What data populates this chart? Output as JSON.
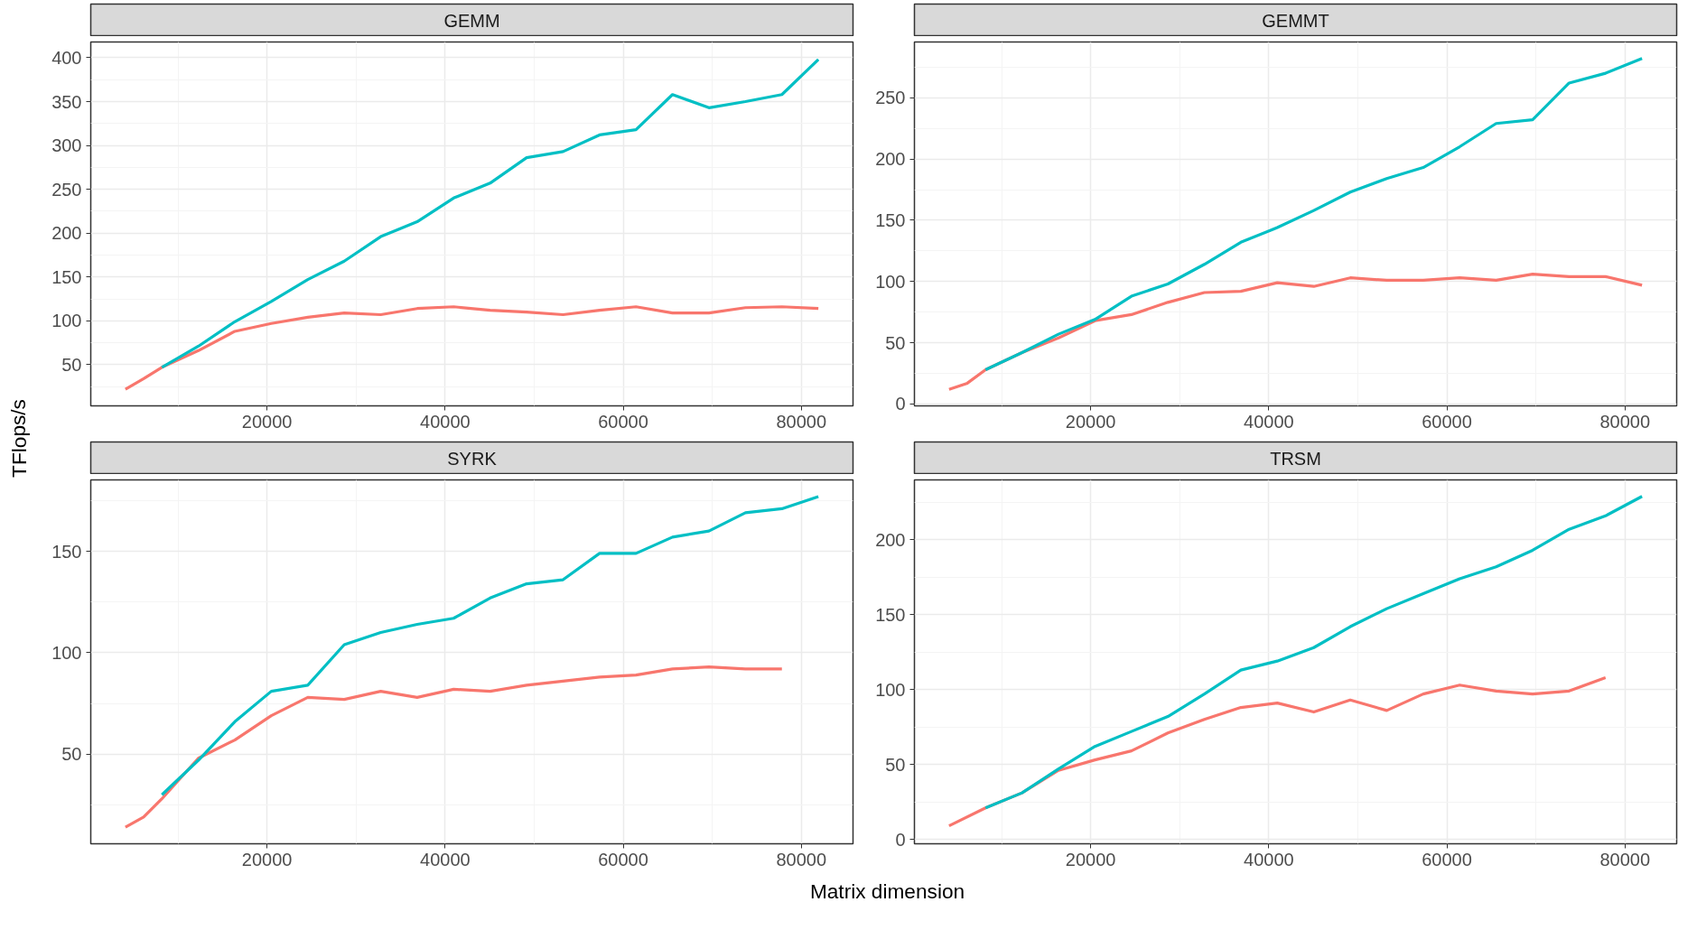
{
  "chart_data": [
    {
      "type": "line",
      "title": "GEMM",
      "ylabel": "TFlops/s",
      "xlim": [
        205,
        85811
      ],
      "ylim": [
        3,
        418
      ],
      "xticks": [
        20000,
        40000,
        60000,
        80000
      ],
      "yticks": [
        50,
        100,
        150,
        200,
        250,
        300,
        350,
        400
      ],
      "grid": true,
      "series": [
        {
          "color": "#f8766d",
          "x": [
            4096,
            6144,
            8192,
            12288,
            16384,
            20480,
            24576,
            28672,
            32768,
            36864,
            40960,
            45056,
            49152,
            53248,
            57344,
            61440,
            65536,
            69632,
            73728,
            77824,
            81920
          ],
          "values": [
            22,
            34,
            47,
            66,
            88,
            97,
            104,
            109,
            107,
            114,
            116,
            112,
            110,
            107,
            112,
            116,
            109,
            109,
            115,
            116,
            114
          ]
        },
        {
          "color": "#00bfc4",
          "x": [
            8192,
            12288,
            16384,
            20480,
            24576,
            28672,
            32768,
            36864,
            40960,
            45056,
            49152,
            53248,
            57344,
            61440,
            65536,
            69632,
            73728,
            77824,
            81920
          ],
          "values": [
            47,
            71,
            99,
            122,
            147,
            168,
            196,
            213,
            240,
            257,
            286,
            293,
            312,
            318,
            358,
            343,
            350,
            358,
            398
          ]
        }
      ]
    },
    {
      "type": "line",
      "title": "GEMMT",
      "xlim": [
        205,
        85811
      ],
      "ylim": [
        -1.5,
        295.5
      ],
      "xticks": [
        20000,
        40000,
        60000,
        80000
      ],
      "yticks": [
        0,
        50,
        100,
        150,
        200,
        250
      ],
      "grid": true,
      "series": [
        {
          "color": "#f8766d",
          "x": [
            4096,
            6144,
            8192,
            12288,
            16384,
            20480,
            24576,
            28672,
            32768,
            36864,
            40960,
            45056,
            49152,
            53248,
            57344,
            61440,
            65536,
            69632,
            73728,
            77824,
            81920
          ],
          "values": [
            12,
            17,
            28,
            42,
            54,
            68,
            73,
            83,
            91,
            92,
            99,
            96,
            103,
            101,
            101,
            103,
            101,
            106,
            104,
            104,
            97
          ]
        },
        {
          "color": "#00bfc4",
          "x": [
            8192,
            12288,
            16384,
            20480,
            24576,
            28672,
            32768,
            36864,
            40960,
            45056,
            49152,
            53248,
            57344,
            61440,
            65536,
            69632,
            73728,
            77824,
            81920
          ],
          "values": [
            28,
            42,
            57,
            69,
            88,
            98,
            114,
            132,
            144,
            158,
            173,
            184,
            193,
            210,
            229,
            232,
            262,
            270,
            282
          ]
        }
      ]
    },
    {
      "type": "line",
      "title": "SYRK",
      "xlabel": "Matrix dimension",
      "xlim": [
        205,
        85811
      ],
      "ylim": [
        5.85,
        185.2
      ],
      "xticks": [
        20000,
        40000,
        60000,
        80000
      ],
      "yticks": [
        50,
        100,
        150
      ],
      "grid": true,
      "series": [
        {
          "color": "#f8766d",
          "x": [
            4096,
            6144,
            8192,
            12288,
            16384,
            20480,
            24576,
            28672,
            32768,
            36864,
            40960,
            45056,
            49152,
            53248,
            57344,
            61440,
            65536,
            69632,
            73728,
            77824
          ],
          "values": [
            14,
            19,
            28,
            48,
            57,
            69,
            78,
            77,
            81,
            78,
            82,
            81,
            84,
            86,
            88,
            89,
            92,
            93,
            92,
            92
          ]
        },
        {
          "color": "#00bfc4",
          "x": [
            8192,
            12288,
            16384,
            20480,
            24576,
            28672,
            32768,
            36864,
            40960,
            45056,
            49152,
            53248,
            57344,
            61440,
            65536,
            69632,
            73728,
            77824,
            81920
          ],
          "values": [
            30,
            47,
            66,
            81,
            84,
            104,
            110,
            114,
            117,
            127,
            134,
            136,
            149,
            149,
            157,
            160,
            169,
            171,
            177
          ]
        }
      ]
    },
    {
      "type": "line",
      "title": "TRSM",
      "xlim": [
        205,
        85811
      ],
      "ylim": [
        -3,
        240
      ],
      "xticks": [
        20000,
        40000,
        60000,
        80000
      ],
      "yticks": [
        0,
        50,
        100,
        150,
        200
      ],
      "grid": true,
      "series": [
        {
          "color": "#f8766d",
          "x": [
            4096,
            8192,
            12288,
            16384,
            20480,
            24576,
            28672,
            32768,
            36864,
            40960,
            45056,
            49152,
            53248,
            57344,
            61440,
            65536,
            69632,
            73728,
            77824
          ],
          "values": [
            9,
            21,
            31,
            46,
            53,
            59,
            71,
            80,
            88,
            91,
            85,
            93,
            86,
            97,
            103,
            99,
            97,
            99,
            108
          ]
        },
        {
          "color": "#00bfc4",
          "x": [
            8192,
            12288,
            16384,
            20480,
            24576,
            28672,
            32768,
            36864,
            40960,
            45056,
            49152,
            53248,
            57344,
            61440,
            65536,
            69632,
            73728,
            77824,
            81920
          ],
          "values": [
            21,
            31,
            47,
            62,
            72,
            82,
            97,
            113,
            119,
            128,
            142,
            154,
            164,
            174,
            182,
            193,
            207,
            216,
            229
          ]
        }
      ]
    }
  ]
}
